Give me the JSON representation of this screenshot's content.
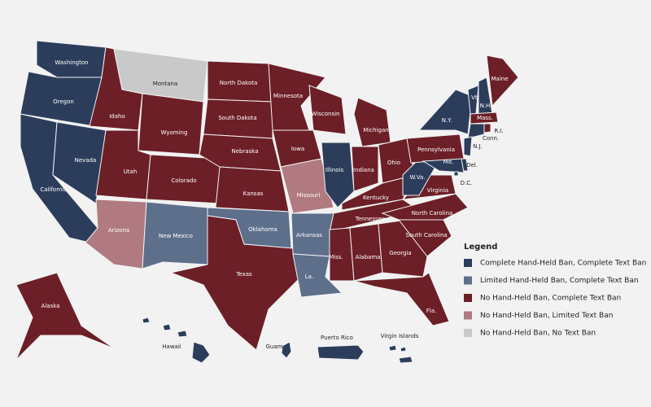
{
  "legend": {
    "title": "Legend",
    "items": [
      {
        "label": "Complete Hand-Held Ban, Complete Text Ban",
        "color": "#2c3d5c"
      },
      {
        "label": "Limited Hand-Held Ban, Complete Text Ban",
        "color": "#5e6f8c"
      },
      {
        "label": "No Hand-Held Ban, Complete Text Ban",
        "color": "#6c1f27"
      },
      {
        "label": "No Hand-Held Ban, Limited Text Ban",
        "color": "#b07a80"
      },
      {
        "label": "No Hand-Held Ban, No Text Ban",
        "color": "#c9c9c9"
      }
    ]
  },
  "regions": [
    {
      "label": "Washington",
      "color": "#2c3d5c"
    },
    {
      "label": "Oregon",
      "color": "#2c3d5c"
    },
    {
      "label": "California",
      "color": "#2c3d5c"
    },
    {
      "label": "Nevada",
      "color": "#2c3d5c"
    },
    {
      "label": "Idaho",
      "color": "#6c1f27"
    },
    {
      "label": "Montana",
      "color": "#c9c9c9"
    },
    {
      "label": "Wyoming",
      "color": "#6c1f27"
    },
    {
      "label": "Utah",
      "color": "#6c1f27"
    },
    {
      "label": "Colorado",
      "color": "#6c1f27"
    },
    {
      "label": "Arizona",
      "color": "#b07a80"
    },
    {
      "label": "New Mexico",
      "color": "#5e6f8c"
    },
    {
      "label": "North Dakota",
      "color": "#6c1f27"
    },
    {
      "label": "South Dakota",
      "color": "#6c1f27"
    },
    {
      "label": "Nebraska",
      "color": "#6c1f27"
    },
    {
      "label": "Kansas",
      "color": "#6c1f27"
    },
    {
      "label": "Oklahoma",
      "color": "#5e6f8c"
    },
    {
      "label": "Texas",
      "color": "#6c1f27"
    },
    {
      "label": "Minnesota",
      "color": "#6c1f27"
    },
    {
      "label": "Iowa",
      "color": "#6c1f27"
    },
    {
      "label": "Missouri",
      "color": "#b07a80"
    },
    {
      "label": "Arkansas",
      "color": "#5e6f8c"
    },
    {
      "label": "La.",
      "color": "#5e6f8c"
    },
    {
      "label": "Wisconsin",
      "color": "#6c1f27"
    },
    {
      "label": "Illinois",
      "color": "#2c3d5c"
    },
    {
      "label": "Michigan",
      "color": "#6c1f27"
    },
    {
      "label": "Indiana",
      "color": "#6c1f27"
    },
    {
      "label": "Ohio",
      "color": "#6c1f27"
    },
    {
      "label": "Kentucky",
      "color": "#6c1f27"
    },
    {
      "label": "Tennessee",
      "color": "#6c1f27"
    },
    {
      "label": "Miss.",
      "color": "#6c1f27"
    },
    {
      "label": "Alabama",
      "color": "#6c1f27"
    },
    {
      "label": "Georgia",
      "color": "#6c1f27"
    },
    {
      "label": "Fla.",
      "color": "#6c1f27"
    },
    {
      "label": "South Carolina",
      "color": "#6c1f27"
    },
    {
      "label": "North Carolina",
      "color": "#6c1f27"
    },
    {
      "label": "Virginia",
      "color": "#6c1f27"
    },
    {
      "label": "W.Va.",
      "color": "#2c3d5c"
    },
    {
      "label": "Pennsylvania",
      "color": "#6c1f27"
    },
    {
      "label": "N.Y.",
      "color": "#2c3d5c"
    },
    {
      "label": "Vt.",
      "color": "#2c3d5c"
    },
    {
      "label": "N.H.",
      "color": "#2c3d5c"
    },
    {
      "label": "Maine",
      "color": "#6c1f27"
    },
    {
      "label": "Mass.",
      "color": "#6c1f27"
    },
    {
      "label": "Conn.",
      "color": "#2c3d5c"
    },
    {
      "label": "R.I.",
      "color": "#6c1f27"
    },
    {
      "label": "N.J.",
      "color": "#2c3d5c"
    },
    {
      "label": "Del.",
      "color": "#2c3d5c"
    },
    {
      "label": "Md.",
      "color": "#2c3d5c"
    },
    {
      "label": "D.C.",
      "color": "#2c3d5c"
    },
    {
      "label": "Alaska",
      "color": "#6c1f27"
    },
    {
      "label": "Hawaii",
      "color": "#2c3d5c"
    },
    {
      "label": "Guam",
      "color": "#2c3d5c"
    },
    {
      "label": "Puerto Rico",
      "color": "#2c3d5c"
    },
    {
      "label": "Virgin Islands",
      "color": "#2c3d5c"
    }
  ]
}
